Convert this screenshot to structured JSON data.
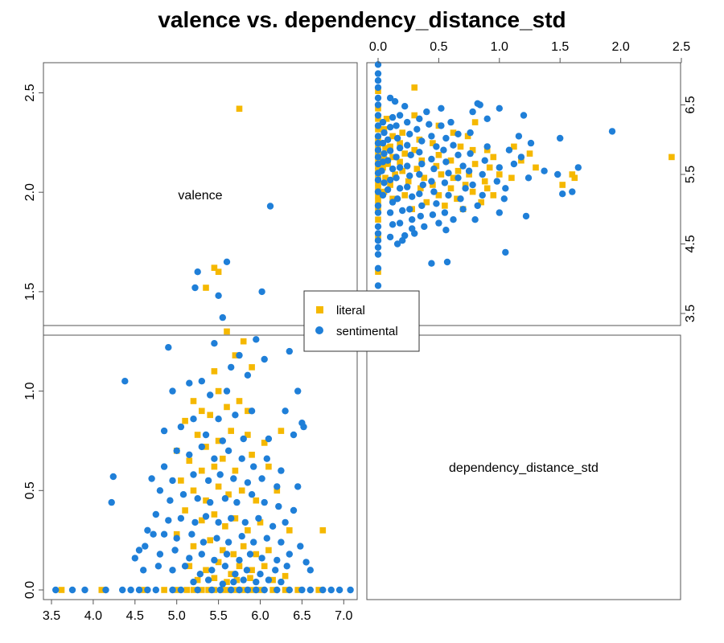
{
  "chart_data": {
    "type": "scatter",
    "title": "valence vs. dependency_distance_std",
    "variables": [
      "valence",
      "dependency_distance_std"
    ],
    "axes": {
      "valence": {
        "range": [
          3.5,
          7.0
        ],
        "ticks": [
          "3.5",
          "4.0",
          "4.5",
          "5.0",
          "5.5",
          "6.0",
          "6.5",
          "7.0"
        ],
        "right_ticks": [
          "3.5",
          "4.5",
          "5.5",
          "6.5"
        ]
      },
      "dependency_distance_std": {
        "range": [
          0.0,
          2.5
        ],
        "ticks": [
          "0.0",
          "0.5",
          "1.0",
          "1.5",
          "2.0",
          "2.5"
        ]
      }
    },
    "legend": {
      "placement": "center",
      "entries": [
        "literal",
        "sentimental"
      ]
    },
    "series": [
      {
        "name": "literal",
        "color": "#F5B800",
        "marker": "square",
        "points": [
          [
            3.62,
            0.0
          ],
          [
            4.1,
            0.0
          ],
          [
            4.6,
            0.0
          ],
          [
            4.85,
            0.0
          ],
          [
            5.0,
            0.0
          ],
          [
            5.12,
            0.0
          ],
          [
            5.2,
            0.0
          ],
          [
            5.3,
            0.0
          ],
          [
            5.38,
            0.0
          ],
          [
            5.45,
            0.0
          ],
          [
            5.55,
            0.0
          ],
          [
            5.62,
            0.0
          ],
          [
            5.7,
            0.0
          ],
          [
            5.8,
            0.0
          ],
          [
            5.9,
            0.0
          ],
          [
            6.0,
            0.0
          ],
          [
            6.15,
            0.0
          ],
          [
            6.3,
            0.0
          ],
          [
            6.45,
            0.0
          ],
          [
            6.7,
            0.0
          ],
          [
            5.5,
            1.6
          ],
          [
            5.45,
            1.62
          ],
          [
            5.35,
            1.52
          ],
          [
            5.75,
            2.42
          ],
          [
            5.6,
            1.3
          ],
          [
            5.8,
            1.25
          ],
          [
            5.7,
            1.18
          ],
          [
            5.9,
            1.12
          ],
          [
            5.45,
            1.1
          ],
          [
            5.5,
            1.0
          ],
          [
            5.2,
            0.95
          ],
          [
            5.3,
            0.9
          ],
          [
            5.4,
            0.88
          ],
          [
            5.6,
            0.92
          ],
          [
            5.75,
            0.95
          ],
          [
            5.85,
            0.9
          ],
          [
            5.1,
            0.85
          ],
          [
            5.25,
            0.78
          ],
          [
            5.35,
            0.72
          ],
          [
            5.5,
            0.75
          ],
          [
            5.65,
            0.8
          ],
          [
            5.85,
            0.78
          ],
          [
            6.05,
            0.74
          ],
          [
            6.25,
            0.8
          ],
          [
            5.0,
            0.7
          ],
          [
            5.15,
            0.65
          ],
          [
            5.3,
            0.6
          ],
          [
            5.45,
            0.62
          ],
          [
            5.55,
            0.66
          ],
          [
            5.7,
            0.6
          ],
          [
            5.9,
            0.68
          ],
          [
            6.1,
            0.62
          ],
          [
            5.05,
            0.55
          ],
          [
            5.2,
            0.5
          ],
          [
            5.35,
            0.45
          ],
          [
            5.5,
            0.52
          ],
          [
            5.62,
            0.48
          ],
          [
            5.78,
            0.5
          ],
          [
            5.95,
            0.45
          ],
          [
            6.2,
            0.5
          ],
          [
            5.1,
            0.4
          ],
          [
            5.3,
            0.35
          ],
          [
            5.45,
            0.38
          ],
          [
            5.58,
            0.32
          ],
          [
            5.7,
            0.36
          ],
          [
            5.85,
            0.3
          ],
          [
            6.0,
            0.34
          ],
          [
            6.35,
            0.3
          ],
          [
            5.0,
            0.28
          ],
          [
            5.2,
            0.22
          ],
          [
            5.4,
            0.25
          ],
          [
            5.55,
            0.2
          ],
          [
            5.68,
            0.18
          ],
          [
            5.8,
            0.22
          ],
          [
            5.95,
            0.18
          ],
          [
            6.1,
            0.2
          ],
          [
            5.15,
            0.12
          ],
          [
            5.35,
            0.1
          ],
          [
            5.5,
            0.14
          ],
          [
            5.65,
            0.08
          ],
          [
            5.75,
            0.12
          ],
          [
            5.9,
            0.1
          ],
          [
            6.05,
            0.12
          ],
          [
            6.75,
            0.3
          ],
          [
            5.25,
            0.05
          ],
          [
            5.45,
            0.06
          ],
          [
            5.6,
            0.04
          ],
          [
            5.72,
            0.05
          ],
          [
            5.88,
            0.06
          ],
          [
            6.15,
            0.05
          ],
          [
            6.3,
            0.07
          ]
        ]
      },
      {
        "name": "sentimental",
        "color": "#1F7FD8",
        "marker": "circle",
        "points": [
          [
            3.55,
            0.0
          ],
          [
            3.75,
            0.0
          ],
          [
            3.9,
            0.0
          ],
          [
            4.15,
            0.0
          ],
          [
            4.35,
            0.0
          ],
          [
            4.45,
            0.0
          ],
          [
            4.55,
            0.0
          ],
          [
            4.65,
            0.0
          ],
          [
            4.75,
            0.0
          ],
          [
            4.95,
            0.0
          ],
          [
            5.05,
            0.0
          ],
          [
            5.25,
            0.0
          ],
          [
            5.42,
            0.0
          ],
          [
            5.52,
            0.0
          ],
          [
            5.65,
            0.0
          ],
          [
            5.75,
            0.0
          ],
          [
            5.85,
            0.0
          ],
          [
            5.95,
            0.0
          ],
          [
            6.05,
            0.0
          ],
          [
            6.2,
            0.0
          ],
          [
            6.35,
            0.0
          ],
          [
            6.5,
            0.0
          ],
          [
            6.6,
            0.0
          ],
          [
            6.75,
            0.0
          ],
          [
            6.85,
            0.0
          ],
          [
            6.95,
            0.0
          ],
          [
            7.08,
            0.0
          ],
          [
            4.22,
            0.44
          ],
          [
            4.24,
            0.57
          ],
          [
            4.38,
            1.05
          ],
          [
            4.5,
            0.16
          ],
          [
            4.62,
            0.22
          ],
          [
            4.72,
            0.28
          ],
          [
            6.12,
            1.93
          ],
          [
            5.6,
            1.65
          ],
          [
            5.25,
            1.6
          ],
          [
            5.5,
            1.48
          ],
          [
            5.22,
            1.52
          ],
          [
            6.02,
            1.5
          ],
          [
            5.55,
            1.37
          ],
          [
            5.95,
            1.26
          ],
          [
            5.45,
            1.24
          ],
          [
            4.9,
            1.22
          ],
          [
            5.65,
            1.12
          ],
          [
            5.75,
            1.18
          ],
          [
            6.05,
            1.16
          ],
          [
            6.35,
            1.2
          ],
          [
            5.85,
            1.08
          ],
          [
            5.3,
            1.05
          ],
          [
            4.95,
            1.0
          ],
          [
            5.15,
            1.04
          ],
          [
            5.4,
            0.98
          ],
          [
            5.6,
            1.0
          ],
          [
            6.45,
            1.0
          ],
          [
            6.5,
            0.84
          ],
          [
            6.52,
            0.82
          ],
          [
            6.3,
            0.9
          ],
          [
            5.9,
            0.9
          ],
          [
            5.2,
            0.86
          ],
          [
            5.5,
            0.86
          ],
          [
            5.7,
            0.88
          ],
          [
            4.85,
            0.8
          ],
          [
            5.05,
            0.82
          ],
          [
            5.35,
            0.78
          ],
          [
            5.55,
            0.75
          ],
          [
            5.8,
            0.76
          ],
          [
            6.1,
            0.76
          ],
          [
            6.4,
            0.78
          ],
          [
            4.85,
            0.62
          ],
          [
            5.0,
            0.7
          ],
          [
            5.15,
            0.68
          ],
          [
            5.3,
            0.72
          ],
          [
            5.45,
            0.66
          ],
          [
            5.62,
            0.7
          ],
          [
            5.78,
            0.66
          ],
          [
            5.92,
            0.62
          ],
          [
            6.08,
            0.66
          ],
          [
            6.25,
            0.6
          ],
          [
            4.7,
            0.56
          ],
          [
            4.95,
            0.55
          ],
          [
            5.2,
            0.58
          ],
          [
            5.38,
            0.55
          ],
          [
            5.52,
            0.58
          ],
          [
            5.68,
            0.56
          ],
          [
            5.85,
            0.54
          ],
          [
            6.02,
            0.56
          ],
          [
            6.2,
            0.52
          ],
          [
            6.45,
            0.52
          ],
          [
            4.8,
            0.5
          ],
          [
            4.92,
            0.45
          ],
          [
            5.08,
            0.48
          ],
          [
            5.25,
            0.46
          ],
          [
            5.4,
            0.44
          ],
          [
            5.58,
            0.46
          ],
          [
            5.72,
            0.44
          ],
          [
            5.9,
            0.48
          ],
          [
            6.05,
            0.44
          ],
          [
            6.22,
            0.42
          ],
          [
            6.4,
            0.4
          ],
          [
            4.75,
            0.38
          ],
          [
            4.9,
            0.35
          ],
          [
            5.05,
            0.36
          ],
          [
            5.22,
            0.34
          ],
          [
            5.35,
            0.37
          ],
          [
            5.5,
            0.34
          ],
          [
            5.65,
            0.36
          ],
          [
            5.82,
            0.34
          ],
          [
            5.98,
            0.36
          ],
          [
            6.15,
            0.32
          ],
          [
            6.3,
            0.34
          ],
          [
            4.65,
            0.3
          ],
          [
            4.85,
            0.28
          ],
          [
            5.0,
            0.26
          ],
          [
            5.18,
            0.28
          ],
          [
            5.32,
            0.24
          ],
          [
            5.48,
            0.26
          ],
          [
            5.62,
            0.24
          ],
          [
            5.78,
            0.27
          ],
          [
            5.92,
            0.24
          ],
          [
            6.08,
            0.26
          ],
          [
            6.25,
            0.24
          ],
          [
            6.48,
            0.22
          ],
          [
            4.55,
            0.2
          ],
          [
            4.8,
            0.18
          ],
          [
            4.98,
            0.2
          ],
          [
            5.15,
            0.16
          ],
          [
            5.3,
            0.18
          ],
          [
            5.45,
            0.15
          ],
          [
            5.6,
            0.18
          ],
          [
            5.75,
            0.15
          ],
          [
            5.88,
            0.18
          ],
          [
            6.02,
            0.16
          ],
          [
            6.2,
            0.15
          ],
          [
            6.35,
            0.18
          ],
          [
            6.55,
            0.14
          ],
          [
            4.6,
            0.1
          ],
          [
            4.78,
            0.12
          ],
          [
            4.95,
            0.1
          ],
          [
            5.1,
            0.12
          ],
          [
            5.28,
            0.08
          ],
          [
            5.42,
            0.1
          ],
          [
            5.58,
            0.12
          ],
          [
            5.7,
            0.08
          ],
          [
            5.84,
            0.1
          ],
          [
            6.0,
            0.08
          ],
          [
            6.18,
            0.1
          ],
          [
            6.32,
            0.12
          ],
          [
            6.6,
            0.1
          ],
          [
            5.2,
            0.04
          ],
          [
            5.38,
            0.05
          ],
          [
            5.55,
            0.03
          ],
          [
            5.68,
            0.04
          ],
          [
            5.8,
            0.05
          ],
          [
            5.95,
            0.04
          ],
          [
            6.1,
            0.05
          ],
          [
            6.25,
            0.04
          ]
        ]
      }
    ]
  }
}
